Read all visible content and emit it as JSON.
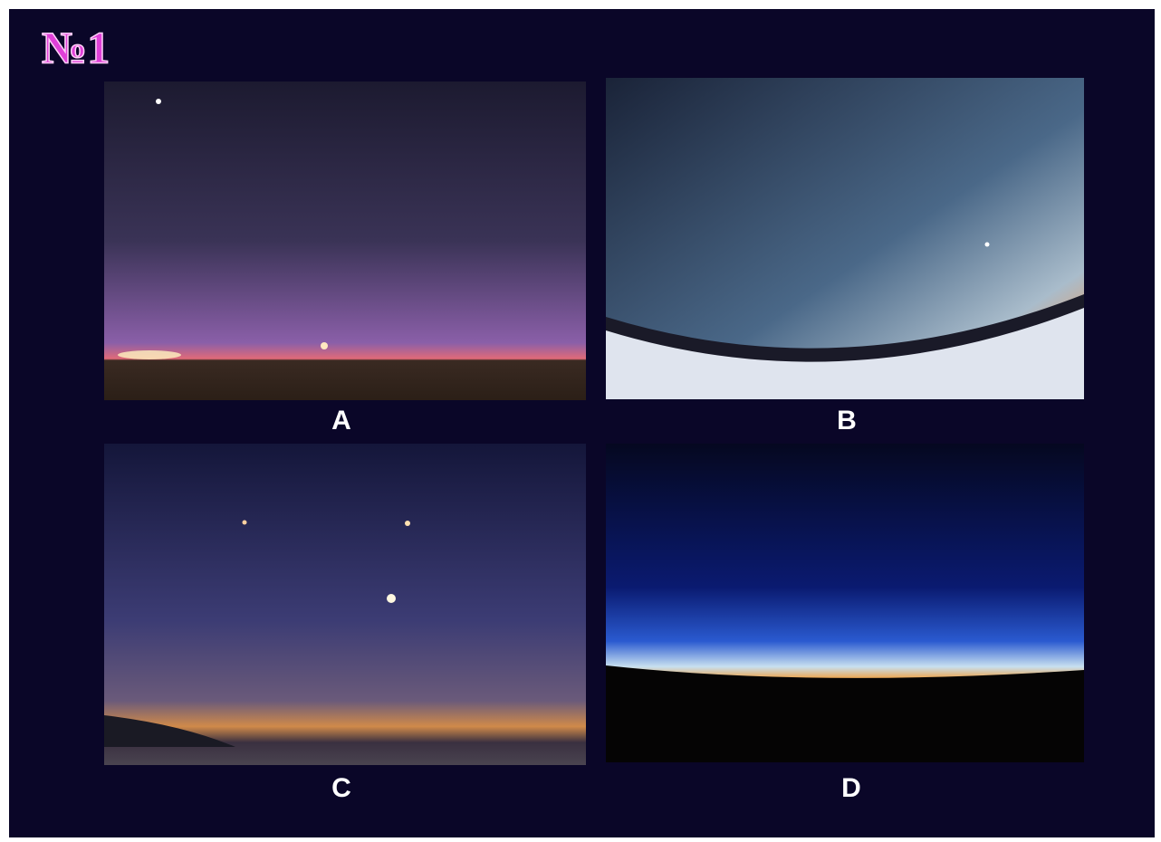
{
  "title": "№1",
  "panels": [
    {
      "label": "A"
    },
    {
      "label": "B"
    },
    {
      "label": "C"
    },
    {
      "label": "D"
    }
  ]
}
